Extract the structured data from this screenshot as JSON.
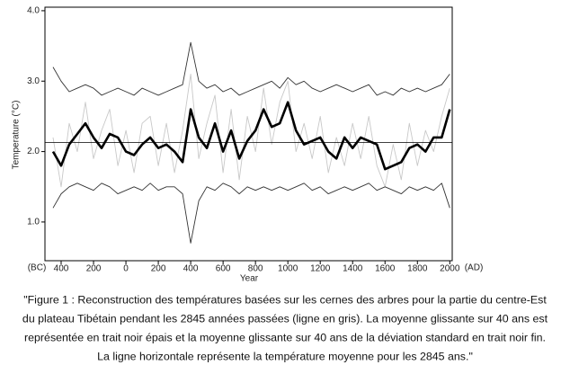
{
  "chart_data": {
    "type": "line",
    "ylabel": "Temperature (°C)",
    "xlabel": "Year",
    "x_left_note": "(BC)",
    "x_right_note": "(AD)",
    "caption": [
      "\"Figure 1 : Reconstruction des températures basées sur les cernes des arbres pour la partie du centre-Est",
      "du plateau Tibétain pendant les 2845 années passées (ligne en gris). La moyenne glissante sur 40 ans est",
      "représentée en trait noir épais et la moyenne glissante sur 40 ans de la déviation standard en trait noir fin.",
      "La ligne horizontale représente la température moyenne pour les 2845 ans.\""
    ],
    "x": [
      -450,
      -400,
      -350,
      -300,
      -250,
      -200,
      -150,
      -100,
      -50,
      0,
      50,
      100,
      150,
      200,
      250,
      300,
      350,
      400,
      450,
      500,
      550,
      600,
      650,
      700,
      750,
      800,
      850,
      900,
      950,
      1000,
      1050,
      1100,
      1150,
      1200,
      1250,
      1300,
      1350,
      1400,
      1450,
      1500,
      1550,
      1600,
      1650,
      1700,
      1750,
      1800,
      1850,
      1900,
      1950,
      2000
    ],
    "series": [
      {
        "color": "#c8c8c8",
        "style": "thin",
        "values": [
          2.2,
          1.5,
          2.4,
          2.0,
          2.7,
          1.9,
          2.3,
          2.6,
          1.8,
          2.3,
          1.7,
          2.4,
          2.5,
          1.8,
          2.4,
          1.7,
          2.3,
          3.1,
          1.9,
          2.4,
          2.8,
          1.7,
          2.6,
          1.6,
          2.5,
          2.0,
          2.9,
          2.1,
          2.7,
          3.0,
          2.0,
          2.4,
          1.9,
          2.5,
          1.7,
          2.2,
          1.8,
          2.4,
          1.9,
          2.5,
          1.8,
          1.5,
          2.1,
          1.6,
          2.4,
          1.8,
          2.3,
          2.0,
          2.5,
          2.9
        ]
      },
      {
        "color": "#333333",
        "style": "thin",
        "values": [
          3.2,
          3.0,
          2.85,
          2.9,
          2.95,
          2.9,
          2.8,
          2.85,
          2.9,
          2.85,
          2.8,
          2.9,
          2.85,
          2.8,
          2.85,
          2.9,
          2.95,
          3.55,
          3.0,
          2.9,
          2.95,
          2.85,
          2.9,
          2.8,
          2.85,
          2.9,
          2.95,
          3.0,
          2.9,
          3.05,
          2.95,
          3.0,
          2.9,
          2.85,
          2.9,
          2.95,
          2.9,
          2.85,
          2.9,
          2.95,
          2.8,
          2.85,
          2.8,
          2.9,
          2.85,
          2.9,
          2.85,
          2.9,
          2.95,
          3.1
        ]
      },
      {
        "color": "#333333",
        "style": "thin",
        "values": [
          1.2,
          1.4,
          1.5,
          1.55,
          1.5,
          1.45,
          1.55,
          1.5,
          1.4,
          1.45,
          1.5,
          1.45,
          1.55,
          1.45,
          1.5,
          1.5,
          1.4,
          0.7,
          1.3,
          1.5,
          1.45,
          1.55,
          1.5,
          1.4,
          1.5,
          1.45,
          1.5,
          1.45,
          1.5,
          1.45,
          1.5,
          1.55,
          1.45,
          1.5,
          1.4,
          1.45,
          1.5,
          1.45,
          1.5,
          1.55,
          1.45,
          1.5,
          1.45,
          1.4,
          1.5,
          1.45,
          1.5,
          1.45,
          1.55,
          1.2
        ]
      },
      {
        "color": "#000000",
        "style": "thick",
        "values": [
          2.0,
          1.8,
          2.1,
          2.25,
          2.4,
          2.2,
          2.05,
          2.25,
          2.2,
          2.0,
          1.95,
          2.1,
          2.2,
          2.05,
          2.1,
          2.0,
          1.85,
          2.6,
          2.2,
          2.05,
          2.4,
          2.0,
          2.3,
          1.9,
          2.15,
          2.3,
          2.6,
          2.35,
          2.4,
          2.7,
          2.3,
          2.1,
          2.15,
          2.2,
          2.0,
          1.9,
          2.2,
          2.05,
          2.2,
          2.15,
          2.1,
          1.75,
          1.8,
          1.85,
          2.05,
          2.1,
          2.0,
          2.2,
          2.2,
          2.6
        ]
      }
    ],
    "hlines": [
      2.13
    ],
    "xlim": [
      -500,
      2015
    ],
    "ylim": [
      0.45,
      4.05
    ],
    "xticks": [
      {
        "value": -400,
        "label": "400"
      },
      {
        "value": -200,
        "label": "200"
      },
      0,
      200,
      400,
      600,
      800,
      1000,
      1200,
      1400,
      1600,
      1800,
      2000
    ],
    "yticks": [
      {
        "value": 1,
        "label": "1.0"
      },
      {
        "value": 2,
        "label": "2.0"
      },
      {
        "value": 3,
        "label": "3.0"
      },
      {
        "value": 4,
        "label": "4.0"
      }
    ]
  }
}
